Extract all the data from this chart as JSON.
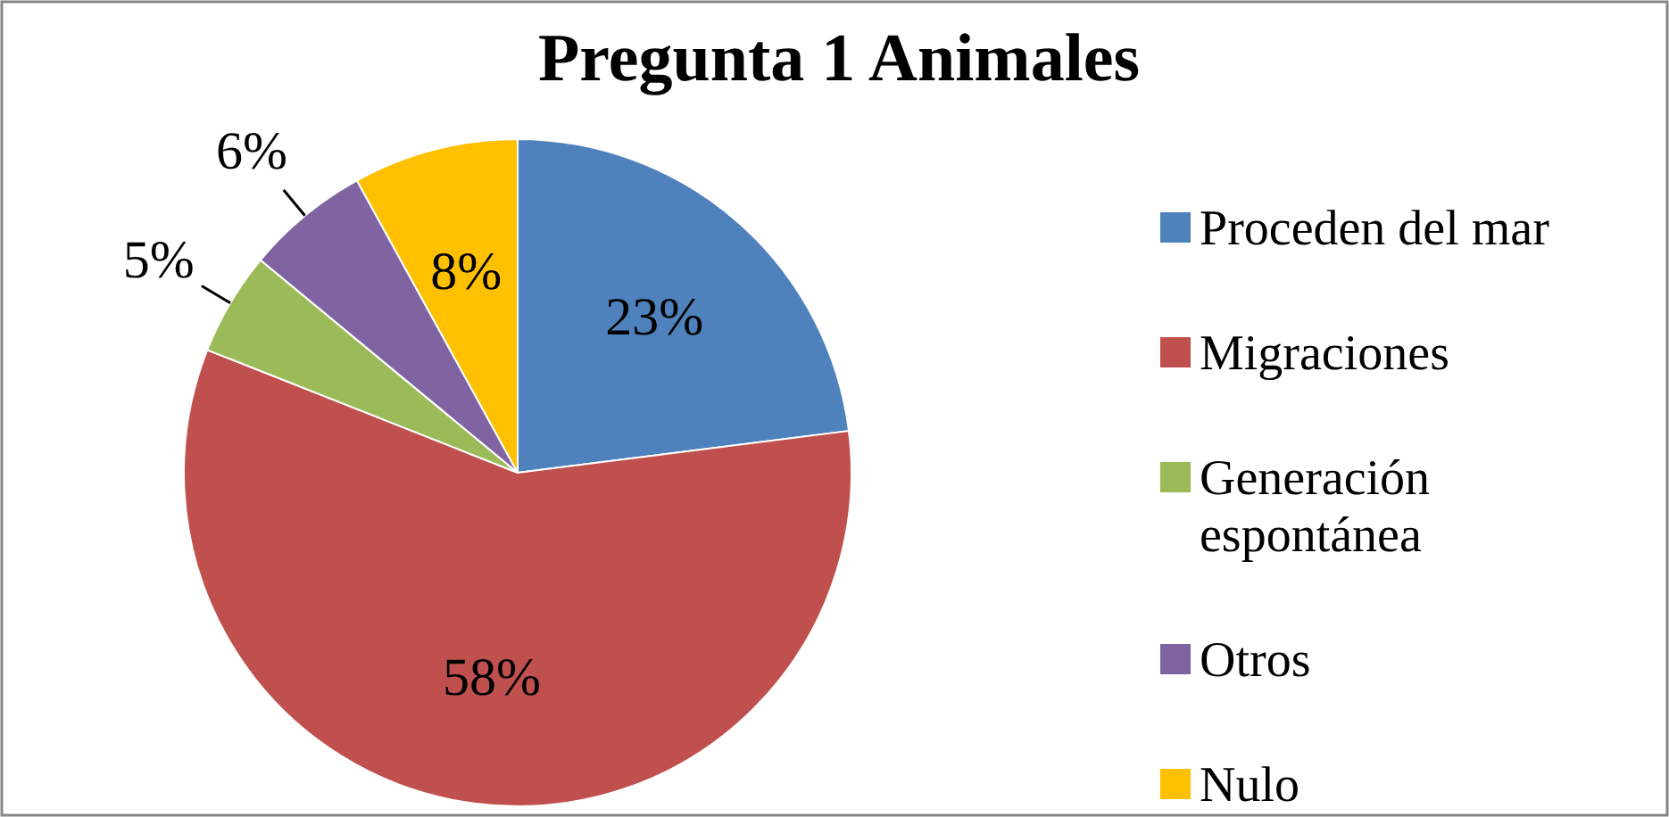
{
  "chart_data": {
    "type": "pie",
    "title": "Pregunta  1 Animales",
    "categories": [
      "Proceden del mar",
      "Migraciones",
      "Generación espontánea",
      "Otros",
      "Nulo"
    ],
    "values": [
      23,
      58,
      5,
      6,
      8
    ],
    "value_labels": [
      "23%",
      "58%",
      "5%",
      "6%",
      "8%"
    ],
    "colors": [
      "#4f81bd",
      "#c0504d",
      "#9bbb59",
      "#8064a2",
      "#ffc000"
    ],
    "legend": "right"
  }
}
